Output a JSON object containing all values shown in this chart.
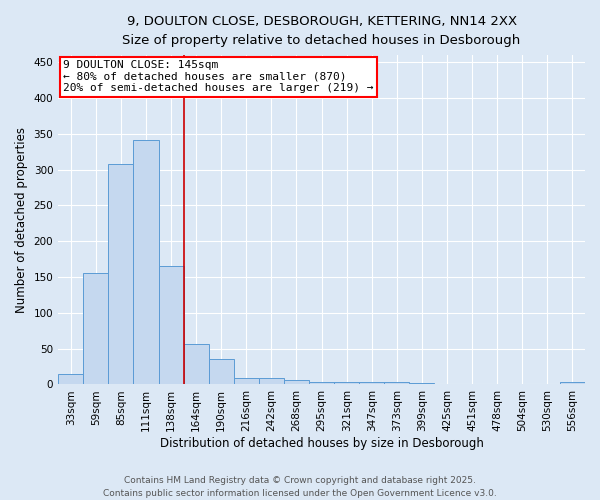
{
  "title_line1": "9, DOULTON CLOSE, DESBOROUGH, KETTERING, NN14 2XX",
  "title_line2": "Size of property relative to detached houses in Desborough",
  "categories": [
    "33sqm",
    "59sqm",
    "85sqm",
    "111sqm",
    "138sqm",
    "164sqm",
    "190sqm",
    "216sqm",
    "242sqm",
    "268sqm",
    "295sqm",
    "321sqm",
    "347sqm",
    "373sqm",
    "399sqm",
    "425sqm",
    "451sqm",
    "478sqm",
    "504sqm",
    "530sqm",
    "556sqm"
  ],
  "values": [
    15,
    155,
    308,
    342,
    165,
    57,
    35,
    9,
    9,
    6,
    3,
    3,
    4,
    3,
    2,
    1,
    1,
    1,
    0,
    0,
    3
  ],
  "bar_color": "#c5d8ef",
  "bar_edge_color": "#5b9bd5",
  "property_line_x": 4.5,
  "property_label": "9 DOULTON CLOSE: 145sqm",
  "annotation_line1": "← 80% of detached houses are smaller (870)",
  "annotation_line2": "20% of semi-detached houses are larger (219) →",
  "vline_color": "#cc0000",
  "ylabel": "Number of detached properties",
  "xlabel": "Distribution of detached houses by size in Desborough",
  "ylim": [
    0,
    460
  ],
  "yticks": [
    0,
    50,
    100,
    150,
    200,
    250,
    300,
    350,
    400,
    450
  ],
  "footnote_line1": "Contains HM Land Registry data © Crown copyright and database right 2025.",
  "footnote_line2": "Contains public sector information licensed under the Open Government Licence v3.0.",
  "bg_color": "#dce8f5",
  "plot_bg_color": "#dce8f5",
  "title_fontsize": 9.5,
  "subtitle_fontsize": 8.5,
  "axis_label_fontsize": 8.5,
  "tick_fontsize": 7.5,
  "footnote_fontsize": 6.5,
  "annot_fontsize": 8
}
